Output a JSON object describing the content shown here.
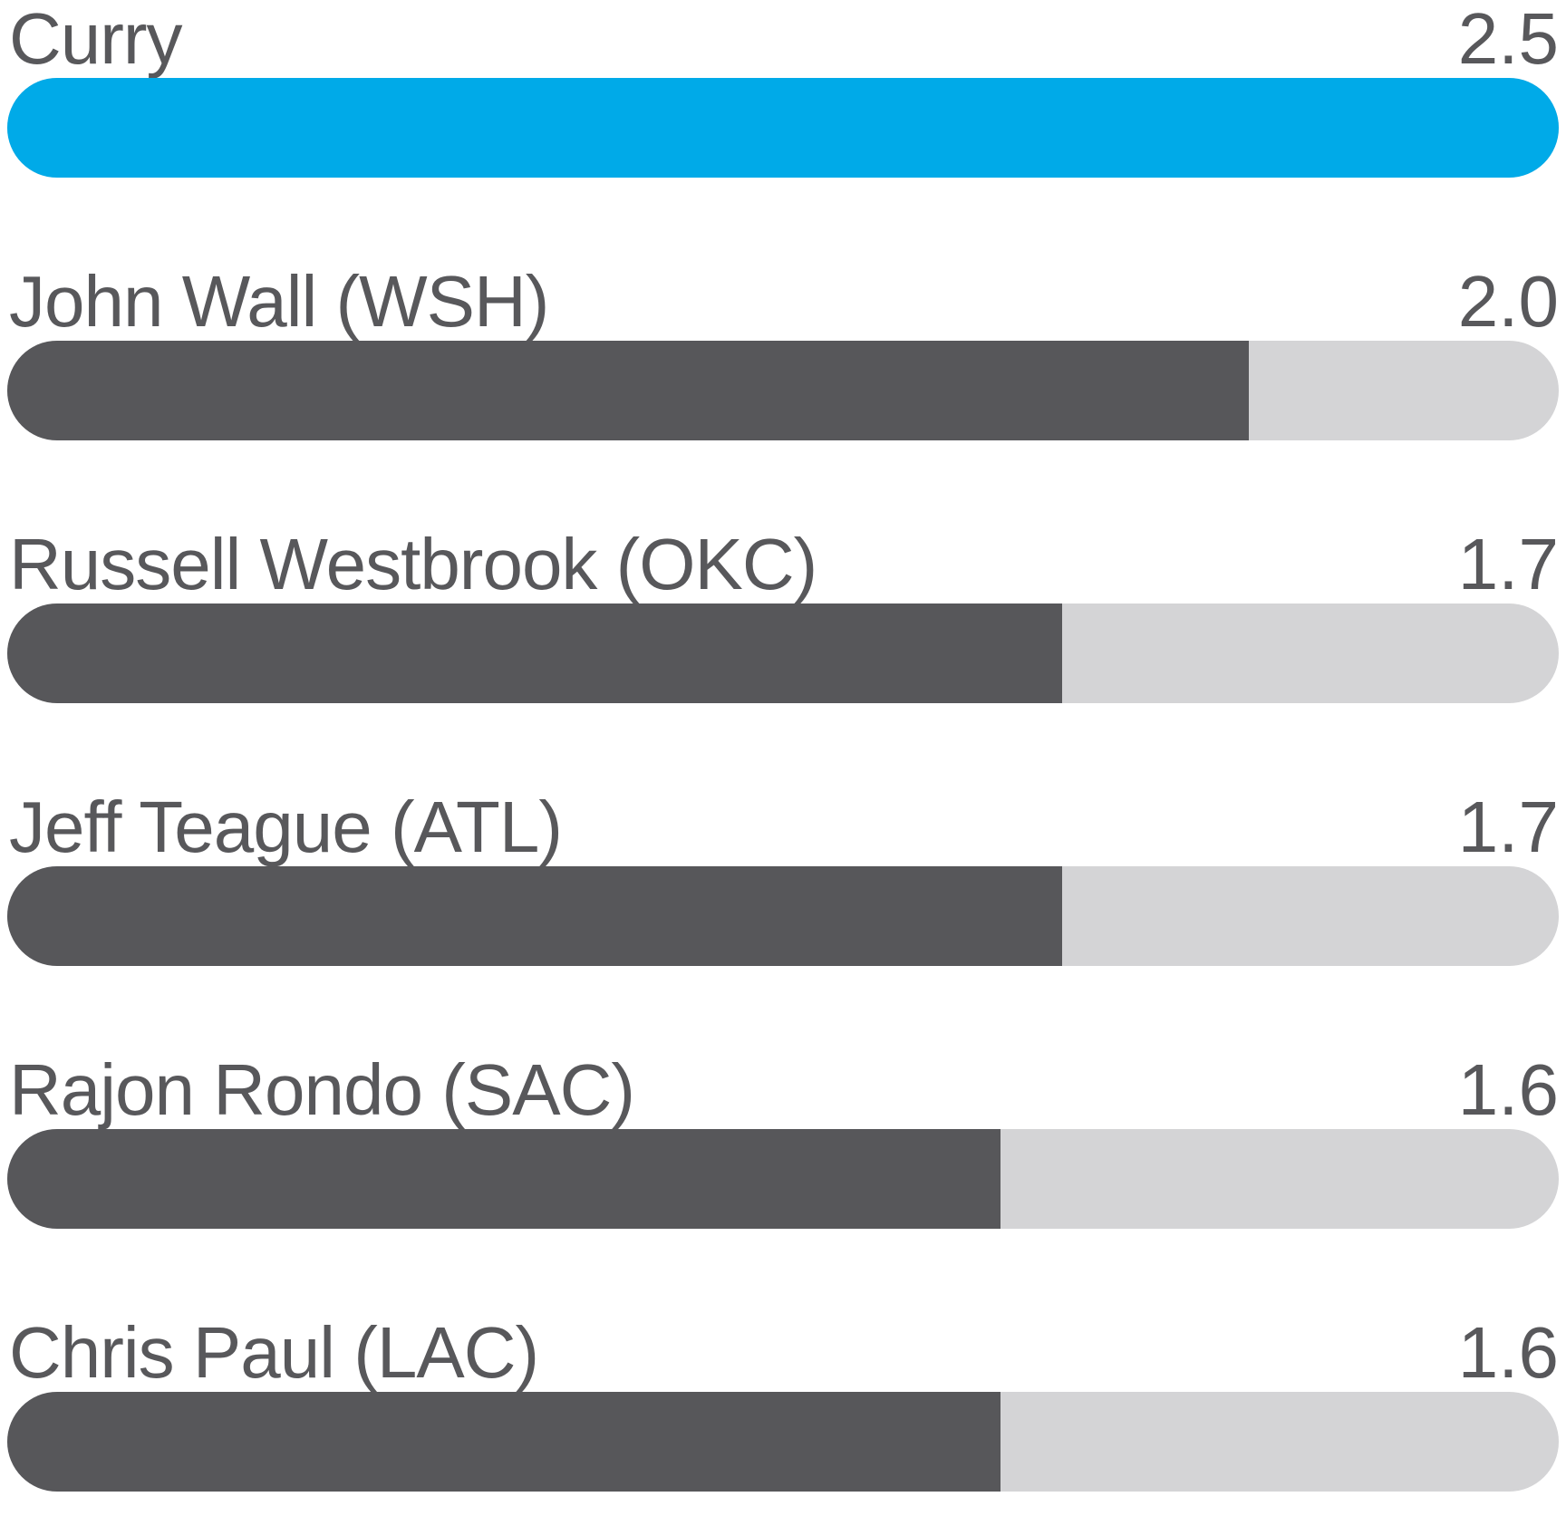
{
  "chart_data": {
    "type": "bar",
    "orientation": "horizontal",
    "title": "",
    "xlabel": "",
    "ylabel": "",
    "xlim": [
      0,
      2.5
    ],
    "grid": false,
    "legend_position": "none",
    "categories": [
      "Curry",
      "John Wall (WSH)",
      "Russell Westbrook (OKC)",
      "Jeff Teague (ATL)",
      "Rajon Rondo (SAC)",
      "Chris Paul (LAC)"
    ],
    "values": [
      2.5,
      2.0,
      1.7,
      1.7,
      1.6,
      1.6
    ],
    "value_labels": [
      "2.5",
      "2.0",
      "1.7",
      "1.7",
      "1.6",
      "1.6"
    ],
    "highlight_index": 0
  },
  "colors": {
    "highlight_bar": "#00AAE8",
    "bar": "#57575A",
    "track": "#D4D4D6",
    "text": "#58585B",
    "background": "#FFFFFF"
  },
  "rows": [
    {
      "label": "Curry",
      "value": "2.5",
      "pct": 100,
      "highlight": true
    },
    {
      "label": "John Wall (WSH)",
      "value": "2.0",
      "pct": 80,
      "highlight": false
    },
    {
      "label": "Russell Westbrook (OKC)",
      "value": "1.7",
      "pct": 68,
      "highlight": false
    },
    {
      "label": "Jeff Teague (ATL)",
      "value": "1.7",
      "pct": 68,
      "highlight": false
    },
    {
      "label": "Rajon Rondo (SAC)",
      "value": "1.6",
      "pct": 64,
      "highlight": false
    },
    {
      "label": "Chris Paul (LAC)",
      "value": "1.6",
      "pct": 64,
      "highlight": false
    }
  ]
}
